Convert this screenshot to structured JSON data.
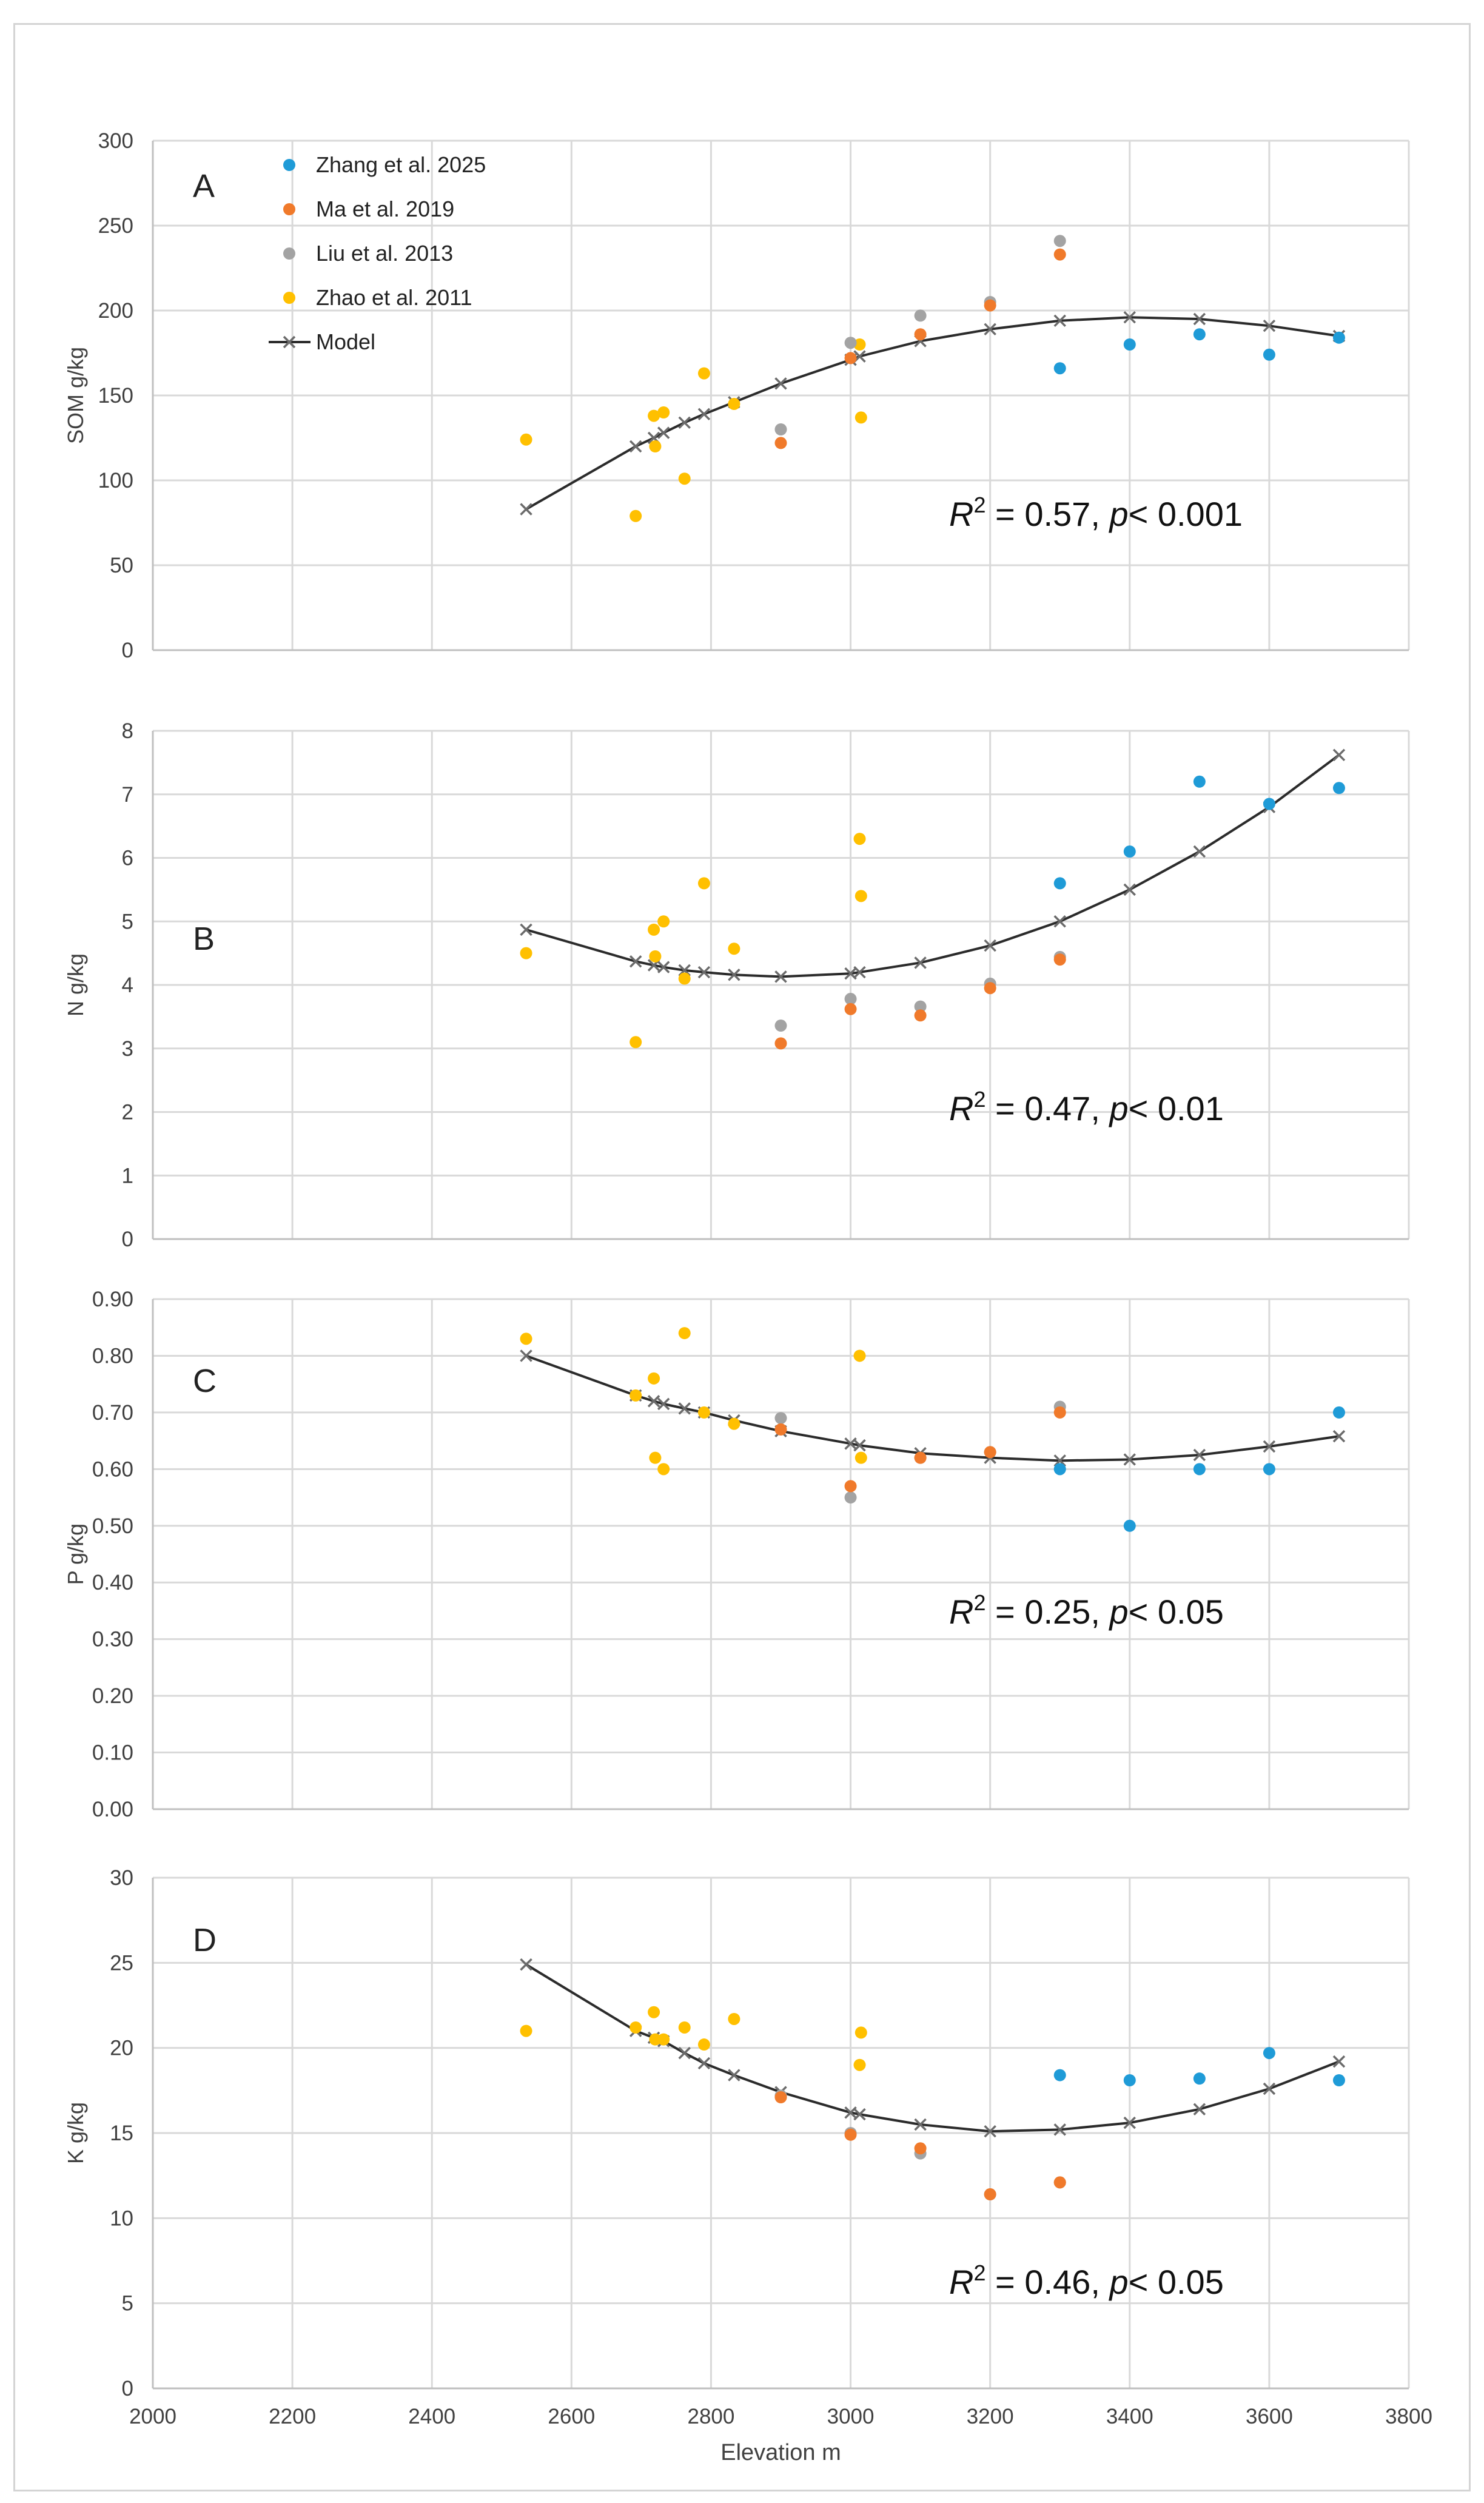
{
  "colors": {
    "zhang": "#1f9bd7",
    "ma": "#f07a2b",
    "liu": "#a3a3a3",
    "zhao": "#ffc000",
    "model": "#2b2b2b"
  },
  "legend": [
    {
      "key": "zhang",
      "label": "Zhang et al. 2025"
    },
    {
      "key": "ma",
      "label": "Ma et al. 2019"
    },
    {
      "key": "liu",
      "label": "Liu et al. 2013"
    },
    {
      "key": "zhao",
      "label": "Zhao et al. 2011"
    },
    {
      "key": "model",
      "label": "Model"
    }
  ],
  "chart_data": [
    {
      "type": "scatter",
      "panel_label": "A",
      "ylabel": "SOM g/kg",
      "xlabel": "",
      "xlim": [
        2000,
        3800
      ],
      "x_ticks": [
        2000,
        2200,
        2400,
        2600,
        2800,
        3000,
        3200,
        3400,
        3600,
        3800
      ],
      "ylim": [
        0,
        300
      ],
      "y_ticks": [
        0,
        50,
        100,
        150,
        200,
        250,
        300
      ],
      "y_tick_labels": [
        "0",
        "50",
        "100",
        "150",
        "200",
        "250",
        "300"
      ],
      "stat": {
        "r2": "0.57",
        "p": "< 0.001"
      },
      "series": [
        {
          "name": "Zhang et al. 2025",
          "key": "zhang",
          "x": [
            3300,
            3400,
            3500,
            3600,
            3700
          ],
          "y": [
            166,
            180,
            186,
            174,
            184
          ]
        },
        {
          "name": "Ma et al. 2019",
          "key": "ma",
          "x": [
            2900,
            3000,
            3100,
            3200,
            3300
          ],
          "y": [
            122,
            172,
            186,
            203,
            233
          ]
        },
        {
          "name": "Liu et al. 2013",
          "key": "liu",
          "x": [
            2900,
            3000,
            3100,
            3200,
            3300
          ],
          "y": [
            130,
            181,
            197,
            205,
            241
          ]
        },
        {
          "name": "Zhao et al. 2011",
          "key": "zhao",
          "x": [
            2535,
            2692,
            2718,
            2720,
            2732,
            2762,
            2790,
            2833,
            3013,
            3015
          ],
          "y": [
            124,
            79,
            138,
            120,
            140,
            101,
            163,
            145,
            180,
            137
          ]
        },
        {
          "name": "Model",
          "key": "model",
          "x": [
            2535,
            2692,
            2718,
            2732,
            2762,
            2790,
            2833,
            2900,
            3000,
            3013,
            3100,
            3200,
            3300,
            3400,
            3500,
            3600,
            3700
          ],
          "y": [
            83,
            120,
            125,
            128,
            134,
            139,
            146,
            157,
            171,
            173,
            182,
            189,
            194,
            196,
            195,
            191,
            185
          ]
        }
      ]
    },
    {
      "type": "scatter",
      "panel_label": "B",
      "ylabel": "N g/kg",
      "xlabel": "",
      "xlim": [
        2000,
        3800
      ],
      "x_ticks": [
        2000,
        2200,
        2400,
        2600,
        2800,
        3000,
        3200,
        3400,
        3600,
        3800
      ],
      "ylim": [
        0,
        8
      ],
      "y_ticks": [
        0,
        1,
        2,
        3,
        4,
        5,
        6,
        7,
        8
      ],
      "y_tick_labels": [
        "0",
        "1",
        "2",
        "3",
        "4",
        "5",
        "6",
        "7",
        "8"
      ],
      "stat": {
        "r2": "0.47",
        "p": "< 0.01"
      },
      "series": [
        {
          "name": "Zhang et al. 2025",
          "key": "zhang",
          "x": [
            3300,
            3400,
            3500,
            3600,
            3700
          ],
          "y": [
            5.6,
            6.1,
            7.2,
            6.85,
            7.1
          ]
        },
        {
          "name": "Ma et al. 2019",
          "key": "ma",
          "x": [
            2900,
            3000,
            3100,
            3200,
            3300
          ],
          "y": [
            3.08,
            3.62,
            3.52,
            3.95,
            4.4
          ]
        },
        {
          "name": "Liu et al. 2013",
          "key": "liu",
          "x": [
            2900,
            3000,
            3100,
            3200,
            3300
          ],
          "y": [
            3.36,
            3.78,
            3.66,
            4.02,
            4.44
          ]
        },
        {
          "name": "Zhao et al. 2011",
          "key": "zhao",
          "x": [
            2535,
            2692,
            2718,
            2720,
            2732,
            2762,
            2790,
            2833,
            3013,
            3015
          ],
          "y": [
            4.5,
            3.1,
            4.87,
            4.45,
            5.0,
            4.1,
            5.6,
            4.57,
            6.3,
            5.4
          ]
        },
        {
          "name": "Model",
          "key": "model",
          "x": [
            2535,
            2692,
            2718,
            2732,
            2762,
            2790,
            2833,
            2900,
            3000,
            3013,
            3100,
            3200,
            3300,
            3400,
            3500,
            3600,
            3700
          ],
          "y": [
            4.87,
            4.37,
            4.31,
            4.28,
            4.23,
            4.2,
            4.16,
            4.13,
            4.18,
            4.2,
            4.35,
            4.62,
            5.0,
            5.5,
            6.1,
            6.8,
            7.62
          ]
        }
      ]
    },
    {
      "type": "scatter",
      "panel_label": "C",
      "ylabel": "P g/kg",
      "xlabel": "",
      "xlim": [
        2000,
        3800
      ],
      "x_ticks": [
        2000,
        2200,
        2400,
        2600,
        2800,
        3000,
        3200,
        3400,
        3600,
        3800
      ],
      "ylim": [
        0,
        0.9
      ],
      "y_ticks": [
        0,
        0.1,
        0.2,
        0.3,
        0.4,
        0.5,
        0.6,
        0.7,
        0.8,
        0.9
      ],
      "y_tick_labels": [
        "0.00",
        "0.10",
        "0.20",
        "0.30",
        "0.40",
        "0.50",
        "0.60",
        "0.70",
        "0.80",
        "0.90"
      ],
      "stat": {
        "r2": "0.25",
        "p": "< 0.05"
      },
      "series": [
        {
          "name": "Zhang et al. 2025",
          "key": "zhang",
          "x": [
            3300,
            3400,
            3500,
            3600,
            3700
          ],
          "y": [
            0.6,
            0.5,
            0.6,
            0.6,
            0.7
          ]
        },
        {
          "name": "Ma et al. 2019",
          "key": "ma",
          "x": [
            2900,
            3000,
            3100,
            3200,
            3300
          ],
          "y": [
            0.67,
            0.57,
            0.62,
            0.63,
            0.7
          ]
        },
        {
          "name": "Liu et al. 2013",
          "key": "liu",
          "x": [
            2900,
            3000,
            3100,
            3200,
            3300
          ],
          "y": [
            0.69,
            0.55,
            0.62,
            0.63,
            0.71
          ]
        },
        {
          "name": "Zhao et al. 2011",
          "key": "zhao",
          "x": [
            2535,
            2692,
            2718,
            2720,
            2732,
            2762,
            2790,
            2833,
            3013,
            3015
          ],
          "y": [
            0.83,
            0.73,
            0.76,
            0.62,
            0.6,
            0.84,
            0.7,
            0.68,
            0.8,
            0.62
          ]
        },
        {
          "name": "Model",
          "key": "model",
          "x": [
            2535,
            2692,
            2718,
            2732,
            2762,
            2790,
            2833,
            2900,
            3000,
            3013,
            3100,
            3200,
            3300,
            3400,
            3500,
            3600,
            3700
          ],
          "y": [
            0.8,
            0.73,
            0.72,
            0.715,
            0.707,
            0.7,
            0.686,
            0.667,
            0.645,
            0.642,
            0.628,
            0.62,
            0.615,
            0.617,
            0.625,
            0.64,
            0.658
          ]
        }
      ]
    },
    {
      "type": "scatter",
      "panel_label": "D",
      "ylabel": "K g/kg",
      "xlabel": "Elevation m",
      "xlim": [
        2000,
        3800
      ],
      "x_ticks": [
        2000,
        2200,
        2400,
        2600,
        2800,
        3000,
        3200,
        3400,
        3600,
        3800
      ],
      "x_tick_labels": [
        "2000",
        "2200",
        "2400",
        "2600",
        "2800",
        "3000",
        "3200",
        "3400",
        "3600",
        "3800"
      ],
      "ylim": [
        0,
        30
      ],
      "y_ticks": [
        0,
        5,
        10,
        15,
        20,
        25,
        30
      ],
      "y_tick_labels": [
        "0",
        "5",
        "10",
        "15",
        "20",
        "25",
        "30"
      ],
      "stat": {
        "r2": "0.46",
        "p": "< 0.05"
      },
      "series": [
        {
          "name": "Zhang et al. 2025",
          "key": "zhang",
          "x": [
            3300,
            3400,
            3500,
            3600,
            3700
          ],
          "y": [
            18.4,
            18.1,
            18.2,
            19.7,
            18.1
          ]
        },
        {
          "name": "Ma et al. 2019",
          "key": "ma",
          "x": [
            2900,
            3000,
            3100,
            3200,
            3300
          ],
          "y": [
            17.1,
            14.9,
            14.1,
            11.4,
            12.1
          ]
        },
        {
          "name": "Liu et al. 2013",
          "key": "liu",
          "x": [
            2900,
            3000,
            3100,
            3200,
            3300
          ],
          "y": [
            17.2,
            15.0,
            13.8,
            11.4,
            12.1
          ]
        },
        {
          "name": "Zhao et al. 2011",
          "key": "zhao",
          "x": [
            2535,
            2692,
            2718,
            2720,
            2732,
            2762,
            2790,
            2833,
            3013,
            3015
          ],
          "y": [
            21.0,
            21.2,
            22.1,
            20.5,
            20.5,
            21.2,
            20.2,
            21.7,
            19.0,
            20.9
          ]
        },
        {
          "name": "Model",
          "key": "model",
          "x": [
            2535,
            2692,
            2718,
            2732,
            2762,
            2790,
            2833,
            2900,
            3000,
            3013,
            3100,
            3200,
            3300,
            3400,
            3500,
            3600,
            3700
          ],
          "y": [
            24.9,
            21.0,
            20.6,
            20.4,
            19.7,
            19.1,
            18.4,
            17.4,
            16.2,
            16.1,
            15.5,
            15.1,
            15.2,
            15.6,
            16.4,
            17.6,
            19.2
          ]
        }
      ]
    }
  ]
}
